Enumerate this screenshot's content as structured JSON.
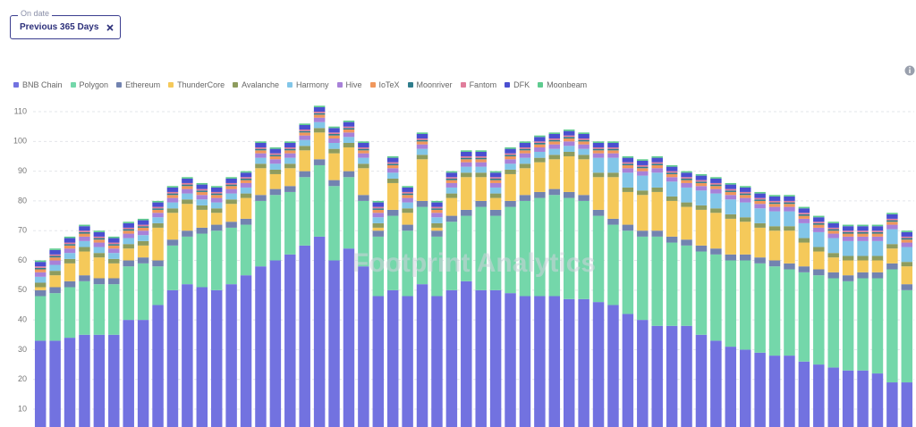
{
  "filter": {
    "label": "On date",
    "value": "Previous 365 Days"
  },
  "watermark": "Footprint Analytics",
  "chart_data": {
    "type": "bar",
    "stacked": true,
    "grid": true,
    "legend": "top-left",
    "ylim": [
      4,
      114
    ],
    "yticks": [
      10,
      20,
      30,
      40,
      50,
      60,
      70,
      80,
      90,
      100,
      110
    ],
    "series": [
      {
        "name": "BNB Chain",
        "color": "#7272e0",
        "values": [
          33,
          33,
          34,
          35,
          35,
          35,
          40,
          40,
          45,
          50,
          52,
          51,
          50,
          52,
          55,
          58,
          60,
          62,
          65,
          68,
          60,
          64,
          58,
          48,
          50,
          48,
          52,
          48,
          50,
          53,
          50,
          50,
          49,
          48,
          48,
          48,
          47,
          47,
          46,
          45,
          42,
          40,
          38,
          38,
          38,
          35,
          33,
          31,
          30,
          29,
          28,
          28,
          26,
          25,
          24,
          23,
          23,
          22,
          19,
          19
        ]
      },
      {
        "name": "Polygon",
        "color": "#74d7aa",
        "values": [
          15,
          16,
          17,
          18,
          17,
          17,
          18,
          19,
          13,
          15,
          16,
          18,
          20,
          19,
          17,
          22,
          22,
          21,
          23,
          24,
          25,
          24,
          22,
          20,
          25,
          22,
          26,
          20,
          23,
          22,
          28,
          25,
          29,
          32,
          33,
          34,
          34,
          33,
          29,
          27,
          28,
          28,
          30,
          28,
          27,
          28,
          29,
          29,
          30,
          30,
          30,
          29,
          30,
          30,
          30,
          30,
          31,
          32,
          38,
          31
        ]
      },
      {
        "name": "Ethereum",
        "color": "#7283b0",
        "values": [
          2,
          2,
          2,
          2,
          2,
          2,
          2,
          2,
          2,
          2,
          2,
          2,
          2,
          2,
          2,
          2,
          2,
          2,
          2,
          2,
          2,
          2,
          2,
          2,
          2,
          2,
          2,
          2,
          2,
          2,
          2,
          2,
          2,
          2,
          2,
          2,
          2,
          2,
          2,
          2,
          2,
          2,
          2,
          2,
          2,
          2,
          2,
          2,
          2,
          2,
          2,
          2,
          2,
          2,
          2,
          2,
          2,
          2,
          2,
          2
        ]
      },
      {
        "name": "ThunderCore",
        "color": "#f5c95a",
        "values": [
          1,
          4,
          6,
          8,
          7,
          5,
          4,
          4,
          11,
          9,
          9,
          6,
          4,
          6,
          7,
          9,
          5,
          6,
          7,
          9,
          9,
          8,
          9,
          1,
          9,
          4,
          14,
          1,
          6,
          11,
          8,
          4,
          9,
          9,
          10,
          10,
          12,
          12,
          11,
          14,
          11,
          12,
          13,
          12,
          11,
          12,
          12,
          12,
          11,
          10,
          10,
          11,
          8,
          6,
          5,
          5,
          4,
          4,
          5,
          6
        ]
      },
      {
        "name": "Avalanche",
        "color": "#8e9c5e",
        "values": [
          1.5,
          1.5,
          1.5,
          1.5,
          1.5,
          1.5,
          1.5,
          1.5,
          1.5,
          1.5,
          1.5,
          1.5,
          1.5,
          1.5,
          1.5,
          1.5,
          1.5,
          1.5,
          1.5,
          1.5,
          1.5,
          1.5,
          1.5,
          1.5,
          1.5,
          1.5,
          1.5,
          1.5,
          1.5,
          1.5,
          1.5,
          1.5,
          1.5,
          1.5,
          1.5,
          1.5,
          1.5,
          1.5,
          1.5,
          1.5,
          1.5,
          1.5,
          1.5,
          1.5,
          1.5,
          1.5,
          1.5,
          1.5,
          1.5,
          1.5,
          1.5,
          1.5,
          1.5,
          1.5,
          1.5,
          1.5,
          1.5,
          1.5,
          1.5,
          1.5
        ]
      },
      {
        "name": "Harmony",
        "color": "#82c6e8",
        "values": [
          2,
          2,
          2,
          2,
          2,
          2,
          2,
          2,
          2,
          2,
          2,
          2,
          2,
          2,
          2,
          2,
          2,
          2,
          2,
          2,
          2,
          2,
          2,
          2,
          2,
          2,
          2,
          2,
          2,
          2,
          2,
          2,
          2,
          2,
          2,
          2,
          2,
          2,
          5,
          5,
          5,
          5,
          5,
          5,
          5,
          5,
          5,
          5,
          5,
          5,
          5,
          5,
          5,
          5,
          5,
          5,
          5,
          5,
          5,
          5
        ]
      },
      {
        "name": "Hive",
        "color": "#a881d8",
        "values": [
          1.5,
          1.5,
          1.5,
          1.5,
          1.5,
          1.5,
          1.5,
          1.5,
          1.5,
          1.5,
          1.5,
          1.5,
          1.5,
          1.5,
          1.5,
          1.5,
          1.5,
          1.5,
          1.5,
          1.5,
          1.5,
          1.5,
          1.5,
          1.5,
          1.5,
          1.5,
          1.5,
          1.5,
          1.5,
          1.5,
          1.5,
          1.5,
          1.5,
          1.5,
          1.5,
          1.5,
          1.5,
          1.5,
          1.5,
          1.5,
          1.5,
          1.5,
          1.5,
          1.5,
          1.5,
          1.5,
          1.5,
          1.5,
          1.5,
          1.5,
          1.5,
          1.5,
          1.5,
          1.5,
          1.5,
          1.5,
          1.5,
          1.5,
          1.5,
          1.5
        ]
      },
      {
        "name": "IoTeX",
        "color": "#f0975c",
        "values": [
          1,
          1,
          1,
          1,
          1,
          1,
          1,
          1,
          1,
          1,
          1,
          1,
          1,
          1,
          1,
          1,
          1,
          1,
          1,
          1,
          1,
          1,
          1,
          1,
          1,
          1,
          1,
          1,
          1,
          1,
          1,
          1,
          1,
          1,
          1,
          1,
          1,
          1,
          1,
          1,
          1,
          1,
          1,
          1,
          1,
          1,
          1,
          1,
          1,
          1,
          1,
          1,
          1,
          1,
          1,
          1,
          1,
          1,
          1,
          1
        ]
      },
      {
        "name": "Moonriver",
        "color": "#2f7d8c",
        "values": [
          0.5,
          0.5,
          0.5,
          0.5,
          0.5,
          0.5,
          0.5,
          0.5,
          0.5,
          0.5,
          0.5,
          0.5,
          0.5,
          0.5,
          0.5,
          0.5,
          0.5,
          0.5,
          0.5,
          0.5,
          0.5,
          0.5,
          0.5,
          0.5,
          0.5,
          0.5,
          0.5,
          0.5,
          0.5,
          0.5,
          0.5,
          0.5,
          0.5,
          0.5,
          0.5,
          0.5,
          0.5,
          0.5,
          0.5,
          0.5,
          0.5,
          0.5,
          0.5,
          0.5,
          0.5,
          0.5,
          0.5,
          0.5,
          0.5,
          0.5,
          0.5,
          0.5,
          0.5,
          0.5,
          0.5,
          0.5,
          0.5,
          0.5,
          0.5,
          0.5
        ]
      },
      {
        "name": "Fantom",
        "color": "#e07d9b",
        "values": [
          0.5,
          0.5,
          0.5,
          0.5,
          0.5,
          0.5,
          0.5,
          0.5,
          0.5,
          0.5,
          0.5,
          0.5,
          0.5,
          0.5,
          0.5,
          0.5,
          0.5,
          0.5,
          0.5,
          0.5,
          0.5,
          0.5,
          0.5,
          0.5,
          0.5,
          0.5,
          0.5,
          0.5,
          0.5,
          0.5,
          0.5,
          0.5,
          0.5,
          0.5,
          0.5,
          0.5,
          0.5,
          0.5,
          0.5,
          0.5,
          0.5,
          0.5,
          0.5,
          0.5,
          0.5,
          0.5,
          0.5,
          0.5,
          0.5,
          0.5,
          0.5,
          0.5,
          0.5,
          0.5,
          0.5,
          0.5,
          0.5,
          0.5,
          0.5,
          0.5
        ]
      },
      {
        "name": "DFK",
        "color": "#4a4fd0",
        "values": [
          1.5,
          1.5,
          1.5,
          1.5,
          1.5,
          1.5,
          1.5,
          1.5,
          1.5,
          1.5,
          1.5,
          1.5,
          1.5,
          1.5,
          1.5,
          1.5,
          1.5,
          1.5,
          1.5,
          1.5,
          1.5,
          1.5,
          1.5,
          1.5,
          1.5,
          1.5,
          1.5,
          1.5,
          1.5,
          1.5,
          1.5,
          1.5,
          1.5,
          1.5,
          1.5,
          1.5,
          1.5,
          1.5,
          1.5,
          1.5,
          1.5,
          1.5,
          1.5,
          1.5,
          1.5,
          1.5,
          1.5,
          1.5,
          1.5,
          1.5,
          1.5,
          1.5,
          1.5,
          1.5,
          1.5,
          1.5,
          1.5,
          1.5,
          1.5,
          1.5
        ]
      },
      {
        "name": "Moonbeam",
        "color": "#5ecb8f",
        "values": [
          0.5,
          0.5,
          0.5,
          0.5,
          0.5,
          0.5,
          0.5,
          0.5,
          0.5,
          0.5,
          0.5,
          0.5,
          0.5,
          0.5,
          0.5,
          0.5,
          0.5,
          0.5,
          0.5,
          0.5,
          0.5,
          0.5,
          0.5,
          0.5,
          0.5,
          0.5,
          0.5,
          0.5,
          0.5,
          0.5,
          0.5,
          0.5,
          0.5,
          0.5,
          0.5,
          0.5,
          0.5,
          0.5,
          0.5,
          0.5,
          0.5,
          0.5,
          0.5,
          0.5,
          0.5,
          0.5,
          0.5,
          0.5,
          0.5,
          0.5,
          0.5,
          0.5,
          0.5,
          0.5,
          0.5,
          0.5,
          0.5,
          0.5,
          0.5,
          0.5
        ]
      }
    ]
  }
}
